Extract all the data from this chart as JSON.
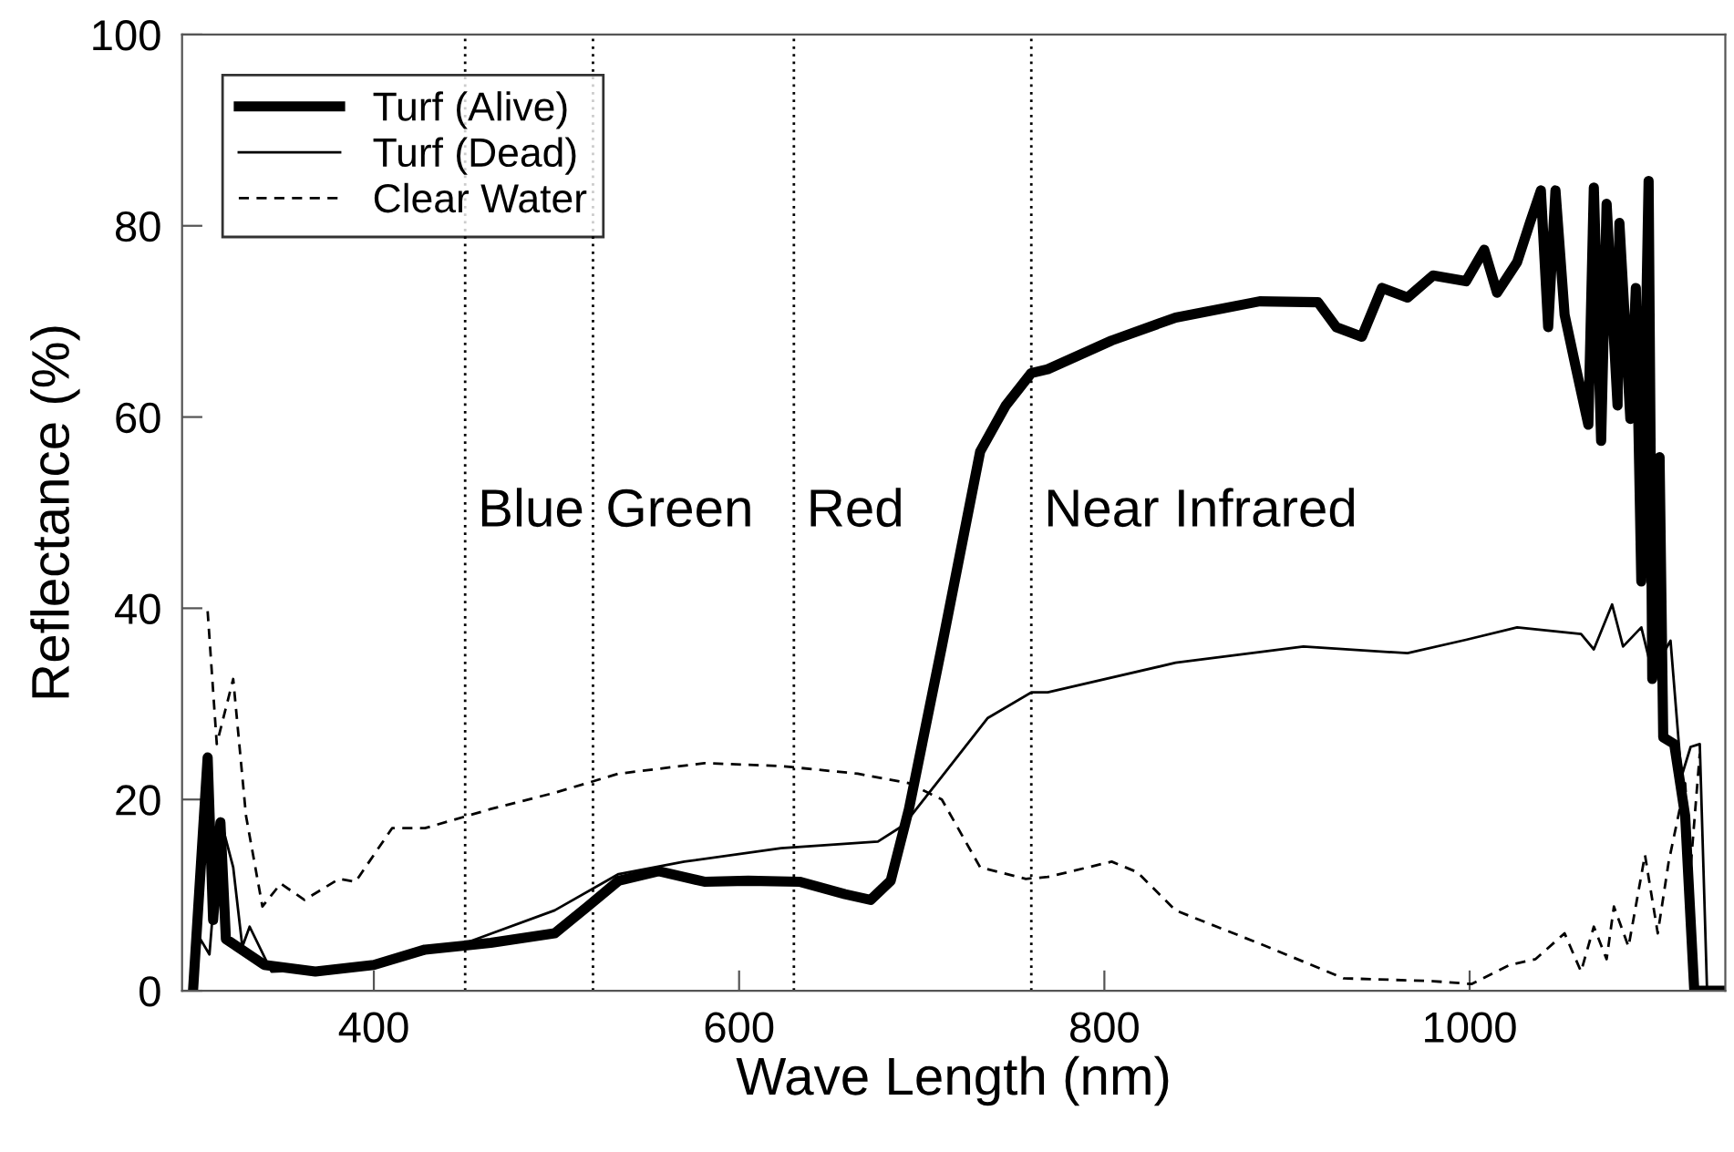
{
  "chart_data": {
    "type": "line",
    "xlabel": "Wave Length (nm)",
    "ylabel": "Reflectance (%)",
    "xlim": [
      295,
      1140
    ],
    "ylim": [
      0,
      100
    ],
    "xticks": [
      400,
      600,
      800,
      1000
    ],
    "yticks": [
      0,
      20,
      40,
      60,
      80,
      100
    ],
    "grid": false,
    "legend": "top left",
    "marker": "none",
    "ref_lines": [
      {
        "axis": "x",
        "value": 450,
        "line_style": "dotted",
        "color": "#000000",
        "label": "Blue"
      },
      {
        "axis": "x",
        "value": 520,
        "line_style": "dotted",
        "color": "#000000",
        "label": "Green"
      },
      {
        "axis": "x",
        "value": 630,
        "line_style": "dotted",
        "color": "#000000",
        "label": "Red"
      },
      {
        "axis": "x",
        "value": 760,
        "line_style": "dotted",
        "color": "#000000",
        "label": "Near Infrared"
      }
    ],
    "series": [
      {
        "name": "Turf (Alive)",
        "color": "#000000",
        "line_style": "solid",
        "x": [
          301,
          309,
          312,
          316,
          319,
          340,
          368,
          400,
          428,
          464,
          499,
          517,
          534,
          556,
          581,
          605,
          633,
          658,
          672,
          683,
          693,
          711,
          732,
          746,
          760,
          769,
          804,
          839,
          885,
          917,
          927,
          941,
          952,
          966,
          980,
          998,
          1008,
          1015,
          1026,
          1033,
          1039,
          1043,
          1047,
          1052,
          1058,
          1065,
          1068,
          1072,
          1075,
          1081,
          1082,
          1088,
          1091,
          1094,
          1098,
          1100,
          1104,
          1106,
          1112,
          1118,
          1123,
          1137
        ],
        "values": [
          0,
          24.4,
          7.4,
          17.6,
          5.4,
          2.7,
          2.0,
          2.7,
          4.3,
          5.0,
          6.0,
          8.8,
          11.5,
          12.5,
          11.4,
          11.5,
          11.4,
          10.1,
          9.5,
          11.5,
          19.0,
          36.0,
          56.4,
          61.2,
          64.6,
          65,
          68,
          70.4,
          72.1,
          72,
          69.4,
          68.4,
          73.5,
          72.5,
          74.8,
          74.2,
          77.5,
          73,
          76.2,
          80.3,
          83.7,
          69.4,
          83.7,
          70.7,
          65.3,
          59.2,
          84,
          57.5,
          82.3,
          61.2,
          80.3,
          59.8,
          73.5,
          42.8,
          84.7,
          32.6,
          55.8,
          26.5,
          25.8,
          18.3,
          0,
          0
        ]
      },
      {
        "name": "Turf (Dead)",
        "color": "#000000",
        "line_style": "solid",
        "x": [
          301,
          305,
          310,
          316,
          323,
          328,
          332,
          344,
          393,
          446,
          499,
          534,
          570,
          623,
          676,
          690,
          711,
          736,
          760,
          769,
          839,
          909,
          966,
          998,
          1026,
          1061,
          1068,
          1078,
          1084,
          1094,
          1100,
          1110,
          1116,
          1121,
          1126,
          1130,
          1137
        ],
        "values": [
          0,
          5.4,
          3.8,
          18.0,
          12.9,
          4.6,
          6.7,
          2.0,
          2.4,
          4.7,
          8.4,
          12.2,
          13.5,
          14.9,
          15.6,
          17.3,
          22.4,
          28.5,
          31.2,
          31.2,
          34.3,
          36.0,
          35.3,
          36.7,
          38.0,
          37.3,
          35.7,
          40.4,
          36,
          38,
          33.3,
          36.6,
          22.4,
          25.5,
          25.8,
          0,
          0
        ]
      },
      {
        "name": "Clear Water",
        "color": "#000000",
        "line_style": "dashed",
        "x": [
          309,
          314,
          323,
          330,
          339,
          349,
          362,
          381,
          390,
          410,
          428,
          464,
          499,
          534,
          581,
          623,
          665,
          693,
          711,
          732,
          757,
          769,
          804,
          818,
          839,
          888,
          931,
          980,
          1001,
          1022,
          1036,
          1052,
          1061,
          1068,
          1075,
          1079,
          1087,
          1096,
          1103,
          1109,
          1118,
          1121,
          1126
        ],
        "values": [
          39.7,
          25.8,
          32.6,
          18.3,
          8.8,
          11.2,
          9.5,
          11.7,
          11.4,
          17,
          17,
          19,
          20.7,
          22.7,
          23.8,
          23.5,
          22.7,
          21.7,
          20.0,
          12.9,
          11.7,
          11.9,
          13.5,
          12.4,
          8.4,
          4.7,
          1.3,
          1.0,
          0.7,
          2.7,
          3.3,
          6.0,
          2.0,
          6.7,
          3.3,
          8.8,
          4.6,
          14.2,
          6.0,
          13.5,
          21.7,
          12.9,
          24.8
        ]
      }
    ]
  }
}
